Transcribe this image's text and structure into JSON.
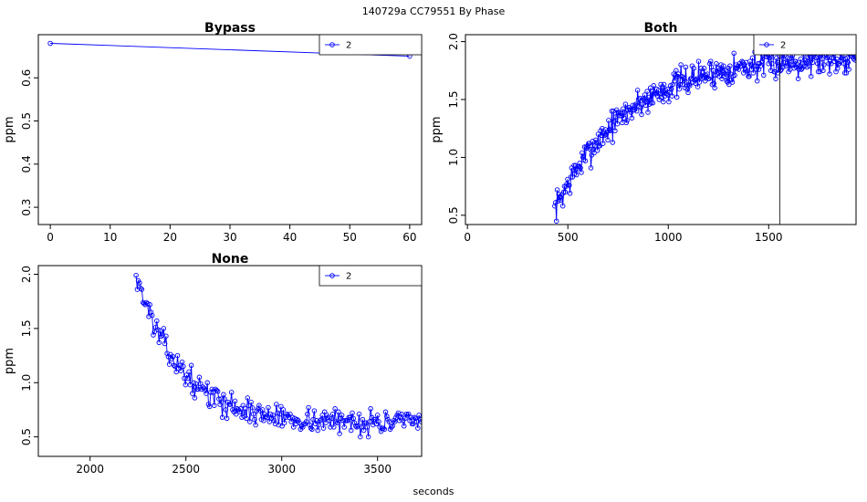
{
  "supertitle": "140729a    CC79551   By Phase",
  "xlabel": "seconds",
  "colors": {
    "series": "#0000ff",
    "axis": "#000000",
    "background": "#ffffff"
  },
  "chart_data": [
    {
      "type": "line",
      "title": "Bypass",
      "ylabel": "ppm",
      "xlim": [
        -2,
        62
      ],
      "ylim": [
        0.26,
        0.7
      ],
      "xticks": [
        0,
        10,
        20,
        30,
        40,
        50,
        60
      ],
      "yticks": [
        0.3,
        0.4,
        0.5,
        0.6
      ],
      "ytick_labels": [
        "0.3",
        "0.4",
        "0.5",
        "0.6"
      ],
      "legend": {
        "placement": "top-right",
        "entries": [
          "2"
        ]
      },
      "markers": "circle-open",
      "series": [
        {
          "name": "2",
          "x": [
            0,
            60
          ],
          "y": [
            0.68,
            0.65
          ]
        }
      ]
    },
    {
      "type": "line",
      "title": "Both",
      "ylabel": "ppm",
      "xlim": [
        -10,
        1935
      ],
      "ylim": [
        0.42,
        2.06
      ],
      "xticks": [
        0,
        500,
        1000,
        1500
      ],
      "yticks": [
        0.5,
        1.0,
        1.5,
        2.0
      ],
      "ytick_labels": [
        "0.5",
        "1.0",
        "1.5",
        "2.0"
      ],
      "legend": {
        "placement": "top-right",
        "entries": [
          "2"
        ]
      },
      "markers": "circle-open",
      "vline": 1555,
      "series": [
        {
          "name": "2",
          "generated": {
            "x0": 435,
            "x1": 1935,
            "dx": 4,
            "mode": "rise",
            "ymin": 0.45,
            "ymax": 1.95,
            "start": 0.55,
            "end": 1.88,
            "tau": 360,
            "noise": 0.08,
            "seed": 7
          }
        }
      ]
    },
    {
      "type": "line",
      "title": "None",
      "ylabel": "ppm",
      "xlim": [
        1730,
        3730
      ],
      "ylim": [
        0.32,
        2.08
      ],
      "xticks": [
        2000,
        2500,
        3000,
        3500
      ],
      "yticks": [
        0.5,
        1.0,
        1.5,
        2.0
      ],
      "ytick_labels": [
        "0.5",
        "1.0",
        "1.5",
        "2.0"
      ],
      "legend": {
        "placement": "top-right",
        "entries": [
          "2"
        ]
      },
      "markers": "circle-open",
      "series": [
        {
          "name": "2",
          "generated": {
            "x0": 2240,
            "x1": 3730,
            "dx": 6,
            "mode": "decay",
            "ymin": 0.4,
            "ymax": 2.03,
            "start": 2.0,
            "end": 0.63,
            "tau": 230,
            "noise": 0.07,
            "seed": 13
          }
        }
      ]
    }
  ]
}
